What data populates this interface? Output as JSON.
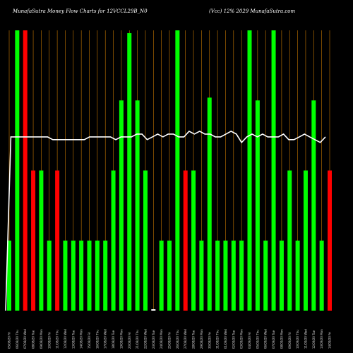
{
  "chart_data": {
    "type": "bar",
    "title_left": "MunafaSutra  Money Flow  Charts for 12VCCL29B_N0",
    "title_right": "(Vcc) 12% 2029 MunafaSutra.com",
    "ylim": [
      0,
      100
    ],
    "colors": {
      "up": "#00ff00",
      "down": "#ff0000",
      "line": "#ffffff",
      "grid": "#c87800",
      "background": "#000000"
    },
    "bars": [
      {
        "v": 25,
        "c": "up"
      },
      {
        "v": 100,
        "c": "up"
      },
      {
        "v": 100,
        "c": "down"
      },
      {
        "v": 50,
        "c": "down"
      },
      {
        "v": 50,
        "c": "up"
      },
      {
        "v": 25,
        "c": "up"
      },
      {
        "v": 50,
        "c": "down"
      },
      {
        "v": 25,
        "c": "up"
      },
      {
        "v": 25,
        "c": "up"
      },
      {
        "v": 25,
        "c": "up"
      },
      {
        "v": 25,
        "c": "up"
      },
      {
        "v": 25,
        "c": "up"
      },
      {
        "v": 25,
        "c": "up"
      },
      {
        "v": 50,
        "c": "up"
      },
      {
        "v": 75,
        "c": "up"
      },
      {
        "v": 99,
        "c": "up"
      },
      {
        "v": 75,
        "c": "up"
      },
      {
        "v": 50,
        "c": "up"
      },
      {
        "v": 0.5,
        "c": "up"
      },
      {
        "v": 25,
        "c": "up"
      },
      {
        "v": 25,
        "c": "up"
      },
      {
        "v": 100,
        "c": "up"
      },
      {
        "v": 50,
        "c": "down"
      },
      {
        "v": 50,
        "c": "up"
      },
      {
        "v": 25,
        "c": "up"
      },
      {
        "v": 76,
        "c": "up"
      },
      {
        "v": 25,
        "c": "up"
      },
      {
        "v": 25,
        "c": "up"
      },
      {
        "v": 25,
        "c": "up"
      },
      {
        "v": 25,
        "c": "up"
      },
      {
        "v": 100,
        "c": "up"
      },
      {
        "v": 75,
        "c": "up"
      },
      {
        "v": 25,
        "c": "up"
      },
      {
        "v": 100,
        "c": "up"
      },
      {
        "v": 25,
        "c": "up"
      },
      {
        "v": 50,
        "c": "up"
      },
      {
        "v": 25,
        "c": "up"
      },
      {
        "v": 50,
        "c": "up"
      },
      {
        "v": 75,
        "c": "up"
      },
      {
        "v": 25,
        "c": "up"
      },
      {
        "v": 50,
        "c": "down"
      }
    ],
    "line": [
      0,
      62,
      62,
      62,
      62,
      62,
      62,
      62,
      62,
      61,
      61,
      61,
      61,
      61,
      61,
      61,
      62,
      62,
      62,
      62,
      62,
      61,
      62,
      62,
      62,
      63,
      63,
      61,
      62,
      63,
      62,
      63,
      63,
      62,
      62,
      64,
      63,
      64,
      63,
      63,
      62,
      62,
      63,
      64,
      63,
      60,
      62,
      63,
      62,
      63,
      62,
      62,
      62,
      63,
      61,
      61,
      62,
      63,
      62,
      61,
      60,
      62
    ],
    "x_labels": [
      "05/08/20 Fri",
      "06/08/20 Thu",
      "07/08/20 Wed",
      "08/08/20 Tue",
      "09/08/20 Mon",
      "10/08/20 Fri",
      "11/08/20 Thu",
      "12/08/20 Wed",
      "13/08/20 Tue",
      "14/08/20 Mon",
      "15/08/20 Fri",
      "16/08/20 Thu",
      "17/08/20 Wed",
      "18/08/20 Tue",
      "19/08/20 Mon",
      "20/08/20 Fri",
      "21/08/20 Thu",
      "22/08/20 Wed",
      "23/08/20 Tue",
      "24/08/20 Mon",
      "25/08/20 Fri",
      "26/08/20 Thu",
      "27/08/20 Wed",
      "28/08/20 Tue",
      "29/08/20 Mon",
      "30/08/20 Fri",
      "31/08/20 Thu",
      "01/09/20 Wed",
      "02/09/20 Tue",
      "03/09/20 Mon",
      "04/09/20 Fri",
      "05/09/20 Thu",
      "06/09/20 Wed",
      "07/09/20 Tue",
      "08/09/20 Mon",
      "09/09/20 Fri",
      "10/09/20 Thu",
      "11/09/20 Wed",
      "12/09/20 Tue",
      "13/09/20 Mon",
      "14/09/20 Fri"
    ]
  }
}
